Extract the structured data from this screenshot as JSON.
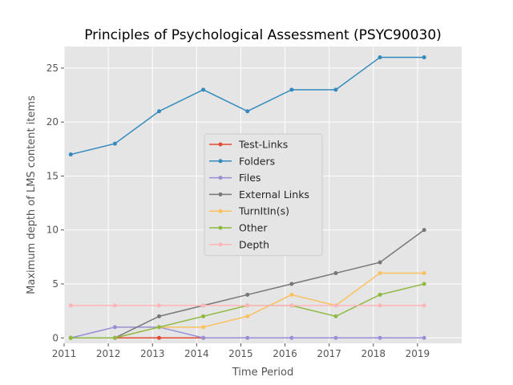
{
  "chart_data": {
    "type": "line",
    "title": "Principles of Psychological Assessment (PSYC90030)",
    "xlabel": "Time Period",
    "ylabel": "Maximum depth of LMS content items",
    "x_ticks": [
      "2011",
      "2012",
      "2013",
      "2014",
      "2015",
      "2016",
      "2017",
      "2018",
      "2019"
    ],
    "y_ticks": [
      "0",
      "5",
      "10",
      "15",
      "20",
      "25"
    ],
    "xlim": [
      2011,
      2020
    ],
    "ylim": [
      -0.5,
      27
    ],
    "x": [
      2011.15,
      2012.15,
      2013.15,
      2014.15,
      2015.15,
      2016.15,
      2017.15,
      2018.15,
      2019.15
    ],
    "grid": true,
    "legend_position": "center",
    "series": [
      {
        "name": "Test-Links",
        "color": "#E24A33",
        "values": [
          0,
          0,
          0,
          0,
          null,
          null,
          null,
          null,
          null
        ]
      },
      {
        "name": "Folders",
        "color": "#348ABD",
        "values": [
          17,
          18,
          21,
          23,
          21,
          23,
          23,
          26,
          26
        ]
      },
      {
        "name": "Files",
        "color": "#988ED5",
        "values": [
          0,
          1,
          1,
          0,
          0,
          0,
          0,
          0,
          0
        ]
      },
      {
        "name": "External Links",
        "color": "#777777",
        "values": [
          0,
          0,
          2,
          3,
          4,
          5,
          6,
          7,
          10
        ]
      },
      {
        "name": "TurnItIn(s)",
        "color": "#FBC15E",
        "values": [
          0,
          0,
          1,
          1,
          2,
          4,
          3,
          6,
          6
        ]
      },
      {
        "name": "Other",
        "color": "#8EBA42",
        "values": [
          0,
          0,
          1,
          2,
          3,
          3,
          2,
          4,
          5
        ]
      },
      {
        "name": "Depth",
        "color": "#FFB5B8",
        "values": [
          3,
          3,
          3,
          3,
          3,
          3,
          3,
          3,
          3
        ]
      }
    ]
  }
}
